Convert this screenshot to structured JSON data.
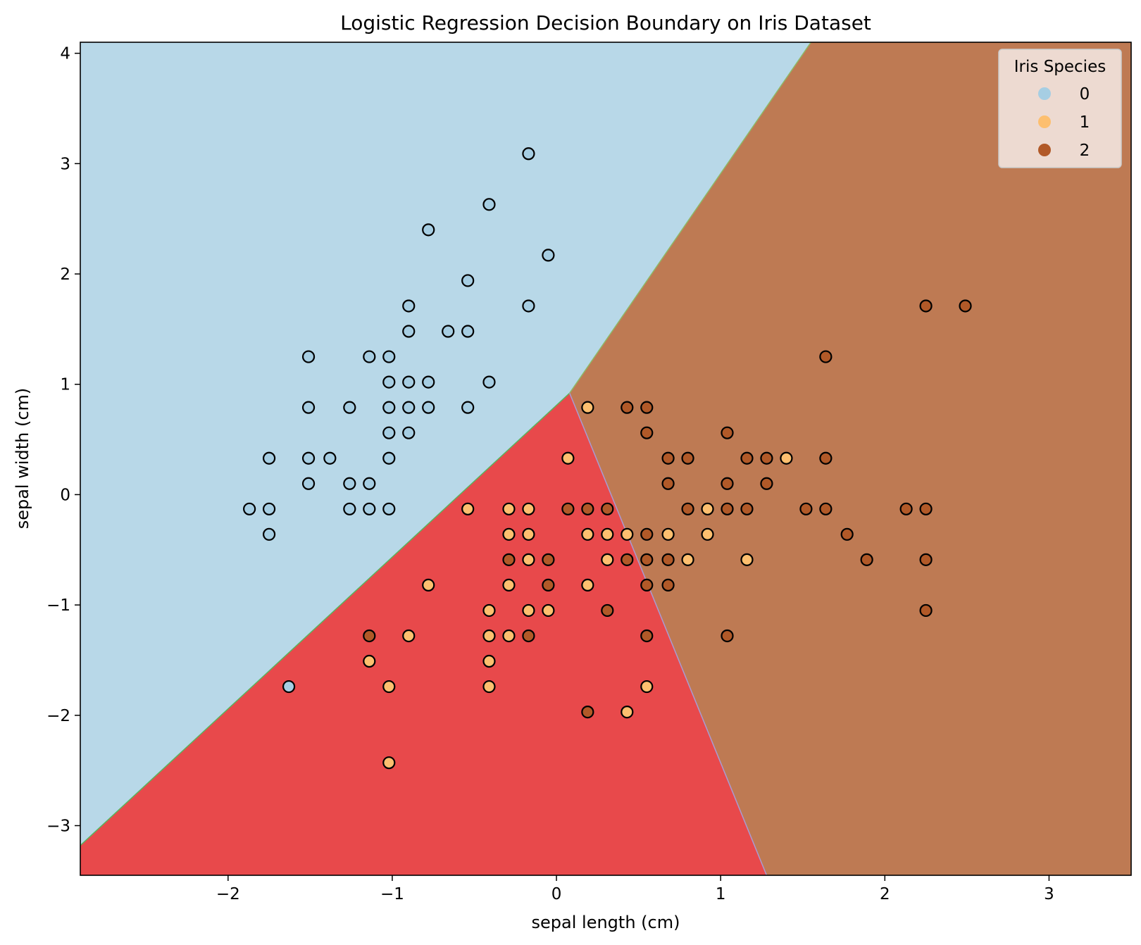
{
  "chart_data": {
    "type": "scatter",
    "title": "Logistic Regression Decision Boundary on Iris Dataset",
    "xlabel": "sepal length (cm)",
    "ylabel": "sepal width (cm)",
    "xlim": [
      -2.9,
      3.5
    ],
    "ylim": [
      -3.45,
      4.1
    ],
    "xticks": [
      -2,
      -1,
      0,
      1,
      2,
      3
    ],
    "yticks": [
      -3,
      -2,
      -1,
      0,
      1,
      2,
      3,
      4
    ],
    "grid": false,
    "regions": [
      {
        "class": "0",
        "color": "#b8d8e8"
      },
      {
        "class": "1",
        "color": "#e8494b"
      },
      {
        "class": "2",
        "color": "#be7a53"
      }
    ],
    "decision_boundaries": {
      "class0_vs_class1": [
        [
          -2.9,
          -3.18
        ],
        [
          0.08,
          0.92
        ]
      ],
      "class0_vs_class2": [
        [
          0.08,
          0.92
        ],
        [
          1.55,
          4.1
        ]
      ],
      "class1_vs_class2": [
        [
          0.08,
          0.92
        ],
        [
          1.28,
          -3.45
        ]
      ]
    },
    "legend": {
      "title": "Iris Species",
      "position": "top-right",
      "entries": [
        {
          "label": "0",
          "color": "#a6cee3"
        },
        {
          "label": "1",
          "color": "#fdbf6f"
        },
        {
          "label": "2",
          "color": "#b15928"
        }
      ]
    },
    "series": [
      {
        "name": "0",
        "color": "#a6cee3",
        "points": [
          [
            -0.17,
            3.09
          ],
          [
            -0.41,
            2.63
          ],
          [
            -0.78,
            2.4
          ],
          [
            -0.05,
            2.17
          ],
          [
            -0.54,
            1.94
          ],
          [
            -0.17,
            1.71
          ],
          [
            -0.9,
            1.71
          ],
          [
            -0.9,
            1.48
          ],
          [
            -0.66,
            1.48
          ],
          [
            -0.54,
            1.48
          ],
          [
            -1.51,
            1.25
          ],
          [
            -1.14,
            1.25
          ],
          [
            -1.02,
            1.25
          ],
          [
            -1.02,
            1.02
          ],
          [
            -0.9,
            1.02
          ],
          [
            -0.78,
            1.02
          ],
          [
            -0.41,
            1.02
          ],
          [
            -1.51,
            0.79
          ],
          [
            -1.26,
            0.79
          ],
          [
            -1.02,
            0.79
          ],
          [
            -0.9,
            0.79
          ],
          [
            -0.78,
            0.79
          ],
          [
            -0.54,
            0.79
          ],
          [
            -1.02,
            0.56
          ],
          [
            -0.9,
            0.56
          ],
          [
            -1.75,
            0.33
          ],
          [
            -1.51,
            0.33
          ],
          [
            -1.38,
            0.33
          ],
          [
            -1.02,
            0.33
          ],
          [
            -1.51,
            0.1
          ],
          [
            -1.26,
            0.1
          ],
          [
            -1.14,
            0.1
          ],
          [
            -1.87,
            -0.13
          ],
          [
            -1.75,
            -0.13
          ],
          [
            -1.26,
            -0.13
          ],
          [
            -1.14,
            -0.13
          ],
          [
            -1.02,
            -0.13
          ],
          [
            -1.75,
            -0.36
          ],
          [
            -1.63,
            -1.74
          ]
        ]
      },
      {
        "name": "1",
        "color": "#fdbf6f",
        "points": [
          [
            0.19,
            0.79
          ],
          [
            0.07,
            0.33
          ],
          [
            1.4,
            0.33
          ],
          [
            -0.54,
            -0.13
          ],
          [
            -0.29,
            -0.13
          ],
          [
            -0.17,
            -0.13
          ],
          [
            0.92,
            -0.13
          ],
          [
            -0.29,
            -0.36
          ],
          [
            -0.17,
            -0.36
          ],
          [
            0.19,
            -0.36
          ],
          [
            0.31,
            -0.36
          ],
          [
            0.43,
            -0.36
          ],
          [
            0.68,
            -0.36
          ],
          [
            0.92,
            -0.36
          ],
          [
            -0.17,
            -0.59
          ],
          [
            0.31,
            -0.59
          ],
          [
            0.8,
            -0.59
          ],
          [
            1.16,
            -0.59
          ],
          [
            -0.78,
            -0.82
          ],
          [
            -0.29,
            -0.82
          ],
          [
            0.19,
            -0.82
          ],
          [
            -0.41,
            -1.05
          ],
          [
            -0.17,
            -1.05
          ],
          [
            -0.05,
            -1.05
          ],
          [
            -0.9,
            -1.28
          ],
          [
            -0.41,
            -1.28
          ],
          [
            -0.29,
            -1.28
          ],
          [
            -1.14,
            -1.51
          ],
          [
            -0.41,
            -1.51
          ],
          [
            -1.02,
            -1.74
          ],
          [
            -0.41,
            -1.74
          ],
          [
            0.55,
            -1.74
          ],
          [
            0.43,
            -1.97
          ],
          [
            -1.02,
            -2.43
          ]
        ]
      },
      {
        "name": "2",
        "color": "#b15928",
        "points": [
          [
            2.25,
            1.71
          ],
          [
            2.49,
            1.71
          ],
          [
            1.64,
            1.25
          ],
          [
            0.43,
            0.79
          ],
          [
            0.55,
            0.79
          ],
          [
            0.55,
            0.56
          ],
          [
            1.04,
            0.56
          ],
          [
            0.68,
            0.33
          ],
          [
            0.8,
            0.33
          ],
          [
            1.16,
            0.33
          ],
          [
            1.28,
            0.33
          ],
          [
            1.64,
            0.33
          ],
          [
            0.68,
            0.1
          ],
          [
            1.04,
            0.1
          ],
          [
            1.28,
            0.1
          ],
          [
            0.07,
            -0.13
          ],
          [
            0.19,
            -0.13
          ],
          [
            0.31,
            -0.13
          ],
          [
            0.8,
            -0.13
          ],
          [
            1.04,
            -0.13
          ],
          [
            1.16,
            -0.13
          ],
          [
            1.52,
            -0.13
          ],
          [
            1.64,
            -0.13
          ],
          [
            2.13,
            -0.13
          ],
          [
            2.25,
            -0.13
          ],
          [
            0.55,
            -0.36
          ],
          [
            1.77,
            -0.36
          ],
          [
            -0.29,
            -0.59
          ],
          [
            -0.05,
            -0.59
          ],
          [
            0.43,
            -0.59
          ],
          [
            0.55,
            -0.59
          ],
          [
            0.68,
            -0.59
          ],
          [
            1.89,
            -0.59
          ],
          [
            2.25,
            -0.59
          ],
          [
            -0.05,
            -0.82
          ],
          [
            0.55,
            -0.82
          ],
          [
            0.68,
            -0.82
          ],
          [
            0.31,
            -1.05
          ],
          [
            2.25,
            -1.05
          ],
          [
            -1.14,
            -1.28
          ],
          [
            -0.17,
            -1.28
          ],
          [
            0.55,
            -1.28
          ],
          [
            1.04,
            -1.28
          ],
          [
            0.19,
            -1.97
          ]
        ]
      }
    ]
  }
}
